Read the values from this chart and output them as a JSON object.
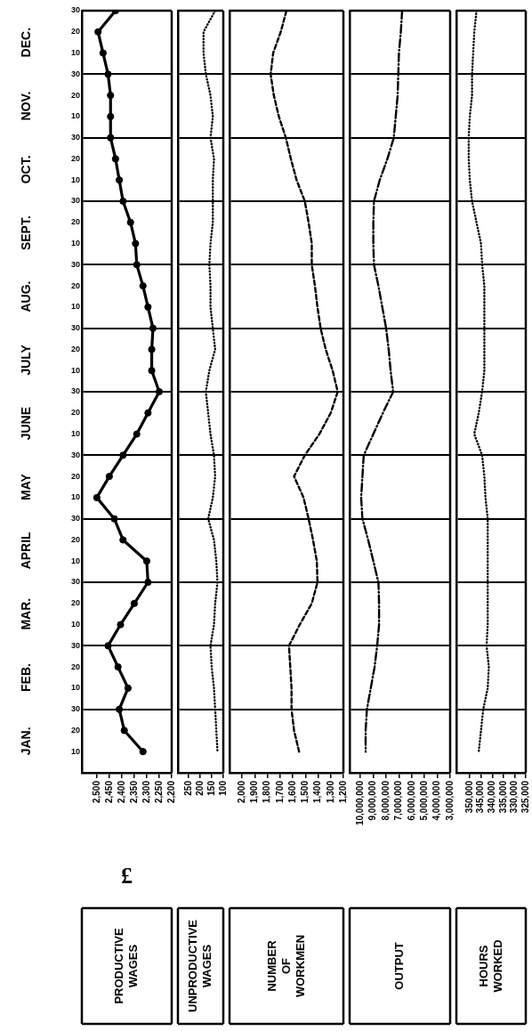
{
  "chart_data": [
    {
      "type": "line",
      "title": "PRODUCTIVE WAGES",
      "xlabel": "£",
      "orientation": "horizontal",
      "grid": "y",
      "marker": "circle",
      "line_style": "solid",
      "categories": [
        "30",
        "20",
        "10",
        "30",
        "20",
        "10",
        "30",
        "20",
        "10",
        "30",
        "20",
        "10",
        "30",
        "20",
        "10",
        "30",
        "20",
        "10",
        "30",
        "20",
        "10",
        "30",
        "20",
        "10",
        "30",
        "20",
        "10",
        "30",
        "20",
        "10",
        "30",
        "20",
        "10",
        "30",
        "20",
        "10"
      ],
      "annotations": [
        "DEC.",
        "NOV.",
        "OCT.",
        "SEPT.",
        "AUG.",
        "JULY",
        "JUNE",
        "MAY",
        "APRIL",
        "MAR.",
        "FEB.",
        "JAN."
      ],
      "xlim": [
        2560,
        2200
      ],
      "xticks": [
        {
          "value": 2500,
          "label": "2,500"
        },
        {
          "value": 2450,
          "label": "2,450"
        },
        {
          "value": 2400,
          "label": "2,400"
        },
        {
          "value": 2350,
          "label": "2,350"
        },
        {
          "value": 2300,
          "label": "2,300"
        },
        {
          "value": 2250,
          "label": "2,250"
        },
        {
          "value": 2200,
          "label": "2,200"
        }
      ],
      "color": "#000000",
      "values": [
        2425,
        2495,
        2475,
        2455,
        2445,
        2445,
        2445,
        2425,
        2410,
        2395,
        2365,
        2345,
        2340,
        2315,
        2295,
        2275,
        2280,
        2280,
        2250,
        2295,
        2340,
        2395,
        2450,
        2500,
        2430,
        2395,
        2300,
        2295,
        2350,
        2405,
        2455,
        2415,
        2375,
        2410,
        2390,
        2315
      ]
    },
    {
      "type": "line",
      "title": "UNPRODUCTIVE WAGES",
      "orientation": "horizontal",
      "grid": "y",
      "line_style": "dotted",
      "tick_labels": "x",
      "categories": [
        "30",
        "20",
        "10",
        "30",
        "20",
        "10",
        "30",
        "20",
        "10",
        "30",
        "20",
        "10",
        "30",
        "20",
        "10",
        "30",
        "20",
        "10",
        "30",
        "20",
        "10",
        "30",
        "20",
        "10",
        "30",
        "20",
        "10",
        "30",
        "20",
        "10",
        "30",
        "20",
        "10",
        "30",
        "20",
        "10"
      ],
      "xlim": [
        295,
        100
      ],
      "xticks": [
        250,
        200,
        150,
        100
      ],
      "color": "#000000",
      "values": [
        135,
        185,
        185,
        175,
        155,
        145,
        155,
        140,
        145,
        145,
        145,
        155,
        160,
        155,
        155,
        145,
        135,
        160,
        175,
        165,
        155,
        140,
        135,
        145,
        165,
        140,
        130,
        125,
        135,
        140,
        155,
        150,
        140,
        135,
        130,
        125
      ]
    },
    {
      "type": "line",
      "title": "NUMBER OF WORKMEN",
      "orientation": "horizontal",
      "grid": "y",
      "line_style": "dashed",
      "tick_labels": "x",
      "categories": [
        "30",
        "20",
        "10",
        "30",
        "20",
        "10",
        "30",
        "20",
        "10",
        "30",
        "20",
        "10",
        "30",
        "20",
        "10",
        "30",
        "20",
        "10",
        "30",
        "20",
        "10",
        "30",
        "20",
        "10",
        "30",
        "20",
        "10",
        "30",
        "20",
        "10",
        "30",
        "20",
        "10",
        "30",
        "20",
        "10"
      ],
      "xlim": [
        2100,
        1200
      ],
      "xticks": [
        {
          "value": 2000,
          "label": "2,000"
        },
        {
          "value": 1900,
          "label": "1,900"
        },
        {
          "value": 1800,
          "label": "1,800"
        },
        {
          "value": 1700,
          "label": "1,700"
        },
        {
          "value": 1600,
          "label": "1,600"
        },
        {
          "value": 1500,
          "label": "1,500"
        },
        {
          "value": 1400,
          "label": "1,400"
        },
        {
          "value": 1300,
          "label": "1,300"
        },
        {
          "value": 1200,
          "label": "1,200"
        }
      ],
      "color": "#000000",
      "values": [
        1650,
        1695,
        1755,
        1775,
        1750,
        1710,
        1655,
        1615,
        1570,
        1505,
        1475,
        1450,
        1450,
        1425,
        1405,
        1380,
        1340,
        1285,
        1245,
        1300,
        1390,
        1505,
        1590,
        1515,
        1475,
        1440,
        1410,
        1405,
        1450,
        1545,
        1630,
        1620,
        1610,
        1610,
        1590,
        1550
      ]
    },
    {
      "type": "line",
      "title": "OUTPUT",
      "orientation": "horizontal",
      "grid": "y",
      "line_style": "dashdot",
      "tick_labels": "x",
      "categories": [
        "30",
        "20",
        "10",
        "30",
        "20",
        "10",
        "30",
        "20",
        "10",
        "30",
        "20",
        "10",
        "30",
        "20",
        "10",
        "30",
        "20",
        "10",
        "30",
        "20",
        "10",
        "30",
        "20",
        "10",
        "30",
        "20",
        "10",
        "30",
        "20",
        "10",
        "30",
        "20",
        "10",
        "30",
        "20",
        "10"
      ],
      "xlim": [
        10850000,
        3000000
      ],
      "xticks": [
        {
          "value": 10000000,
          "label": "10,000,000"
        },
        {
          "value": 9000000,
          "label": "9,000,000"
        },
        {
          "value": 8000000,
          "label": "8,000,000"
        },
        {
          "value": 7000000,
          "label": "7,000,000"
        },
        {
          "value": 6000000,
          "label": "6,000,000"
        },
        {
          "value": 5000000,
          "label": "5,000,000"
        },
        {
          "value": 4000000,
          "label": "4,000,000"
        },
        {
          "value": 3000000,
          "label": "3,000,000"
        }
      ],
      "color": "#000000",
      "values": [
        6750000,
        6850000,
        7000000,
        7050000,
        7100000,
        7250000,
        7400000,
        7900000,
        8500000,
        8950000,
        9000000,
        9000000,
        8950000,
        8600000,
        8300000,
        8000000,
        7800000,
        7650000,
        7450000,
        8250000,
        9000000,
        9750000,
        9850000,
        9950000,
        9850000,
        9400000,
        9000000,
        8600000,
        8550000,
        8550000,
        8700000,
        8900000,
        9200000,
        9500000,
        9600000,
        9600000
      ]
    },
    {
      "type": "line",
      "title": "HOURS WORKED",
      "orientation": "horizontal",
      "grid": "y",
      "line_style": "dotted",
      "tick_labels": "x",
      "categories": [
        "30",
        "20",
        "10",
        "30",
        "20",
        "10",
        "30",
        "20",
        "10",
        "30",
        "20",
        "10",
        "30",
        "20",
        "10",
        "30",
        "20",
        "10",
        "30",
        "20",
        "10",
        "30",
        "20",
        "10",
        "30",
        "20",
        "10",
        "30",
        "20",
        "10",
        "30",
        "20",
        "10",
        "30",
        "20",
        "10"
      ],
      "xlim": [
        356000,
        325000
      ],
      "xticks": [
        {
          "value": 350000,
          "label": "350,000"
        },
        {
          "value": 345000,
          "label": "345,000"
        },
        {
          "value": 340000,
          "label": "340,000"
        },
        {
          "value": 335000,
          "label": "335,000"
        },
        {
          "value": 330000,
          "label": "330,000"
        },
        {
          "value": 325000,
          "label": "325,000"
        }
      ],
      "color": "#000000",
      "values": [
        347000,
        348000,
        348500,
        349000,
        349000,
        350000,
        350500,
        350500,
        350000,
        349000,
        347000,
        345000,
        344500,
        343500,
        343500,
        343500,
        343500,
        343500,
        344500,
        346000,
        348000,
        344500,
        343500,
        343000,
        342000,
        342000,
        342000,
        342000,
        342000,
        342000,
        342500,
        341500,
        342000,
        344000,
        345000,
        346000
      ]
    }
  ]
}
